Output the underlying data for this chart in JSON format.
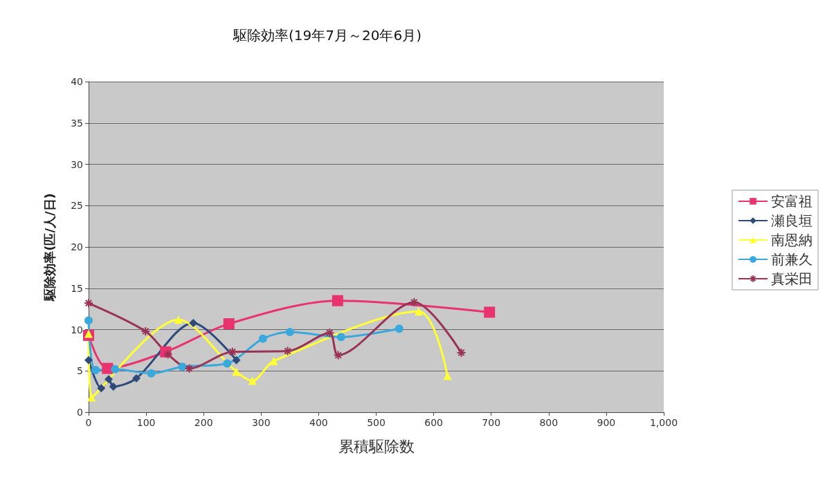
{
  "chart_data": {
    "type": "line",
    "title": "駆除効率(19年7月～20年6月)",
    "xlabel": "累積駆除数",
    "ylabel": "駆除効率(匹/人/日)",
    "xlim": [
      0,
      1000
    ],
    "xticks": [
      0,
      100,
      200,
      300,
      400,
      500,
      600,
      700,
      800,
      900,
      {
        "value": 1000,
        "label": "1,000"
      }
    ],
    "ylim": [
      0,
      40
    ],
    "yticks": [
      0,
      5,
      10,
      15,
      20,
      25,
      30,
      35,
      40
    ],
    "grid": "y",
    "legend": "right",
    "series": [
      {
        "name": "安富祖",
        "color": "#e8336e",
        "marker": "square",
        "x": [
          0,
          33,
          134,
          244,
          433,
          697
        ],
        "values": [
          9.3,
          5.3,
          7.3,
          10.7,
          13.5,
          12.1
        ]
      },
      {
        "name": "瀬良垣",
        "color": "#2e4a7a",
        "marker": "diamond",
        "x": [
          0,
          22,
          35,
          43,
          83,
          182,
          257
        ],
        "values": [
          6.3,
          2.9,
          4.0,
          3.1,
          4.1,
          10.8,
          6.3
        ]
      },
      {
        "name": "南恩納",
        "color": "#ffff33",
        "marker": "triangle",
        "x": [
          0,
          5,
          156,
          257,
          285,
          322,
          574,
          624
        ],
        "values": [
          9.5,
          1.8,
          11.2,
          4.9,
          3.8,
          6.2,
          12.2,
          4.4
        ]
      },
      {
        "name": "前兼久",
        "color": "#3aa8dc",
        "marker": "circle",
        "x": [
          0,
          12,
          46,
          109,
          163,
          241,
          303,
          350,
          439,
          540
        ],
        "values": [
          11.1,
          5.1,
          5.2,
          4.7,
          5.5,
          5.9,
          8.9,
          9.7,
          9.1,
          10.1
        ]
      },
      {
        "name": "真栄田",
        "color": "#993355",
        "marker": "cross",
        "x": [
          0,
          99,
          138,
          175,
          250,
          346,
          419,
          434,
          566,
          648
        ],
        "values": [
          13.2,
          9.8,
          7.0,
          5.3,
          7.3,
          7.4,
          9.6,
          6.9,
          13.3,
          7.2
        ]
      }
    ]
  }
}
